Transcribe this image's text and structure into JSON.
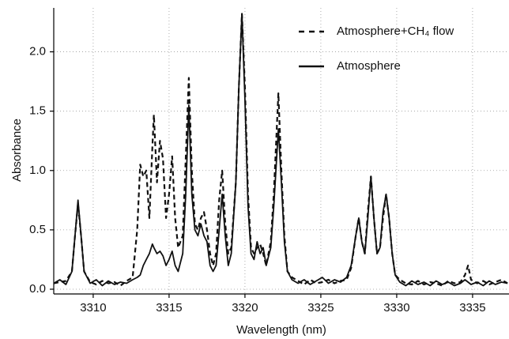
{
  "chart_data": {
    "type": "line",
    "x_label": "Wavelength (nm)",
    "y_label": "Absorbance",
    "x": [
      3307.4,
      3307.8,
      3308.2,
      3308.6,
      3308.8,
      3309.0,
      3309.2,
      3309.4,
      3309.8,
      3310.2,
      3310.6,
      3311.0,
      3311.4,
      3311.8,
      3312.2,
      3312.6,
      3312.9,
      3313.1,
      3313.3,
      3313.5,
      3313.7,
      3313.9,
      3314.0,
      3314.2,
      3314.4,
      3314.6,
      3314.8,
      3315.0,
      3315.2,
      3315.4,
      3315.6,
      3315.9,
      3316.1,
      3316.3,
      3316.5,
      3316.7,
      3316.9,
      3317.1,
      3317.3,
      3317.5,
      3317.7,
      3317.9,
      3318.1,
      3318.3,
      3318.5,
      3318.7,
      3318.9,
      3319.1,
      3319.4,
      3319.6,
      3319.8,
      3320.0,
      3320.2,
      3320.4,
      3320.6,
      3320.8,
      3321.0,
      3321.2,
      3321.4,
      3321.7,
      3321.9,
      3322.2,
      3322.4,
      3322.6,
      3322.8,
      3323.1,
      3323.5,
      3323.9,
      3324.3,
      3324.7,
      3325.1,
      3325.5,
      3325.9,
      3326.3,
      3326.7,
      3327.0,
      3327.3,
      3327.5,
      3327.7,
      3327.9,
      3328.1,
      3328.3,
      3328.5,
      3328.7,
      3328.9,
      3329.1,
      3329.3,
      3329.5,
      3329.7,
      3329.9,
      3330.2,
      3330.6,
      3331.0,
      3331.4,
      3331.8,
      3332.2,
      3332.6,
      3333.0,
      3333.4,
      3333.8,
      3334.2,
      3334.5,
      3334.7,
      3334.9,
      3335.3,
      3335.7,
      3336.1,
      3336.5,
      3336.9,
      3337.3
    ],
    "series": [
      {
        "name": "Atmosphere+CH₄ flow",
        "color": "#111111",
        "dash": true,
        "values": [
          0.05,
          0.06,
          0.07,
          0.15,
          0.45,
          0.72,
          0.45,
          0.15,
          0.06,
          0.04,
          0.07,
          0.05,
          0.06,
          0.03,
          0.07,
          0.1,
          0.5,
          1.05,
          0.95,
          1.0,
          0.6,
          1.2,
          1.47,
          0.9,
          1.25,
          1.1,
          0.6,
          0.8,
          1.12,
          0.6,
          0.35,
          0.45,
          1.1,
          1.78,
          1.0,
          0.55,
          0.5,
          0.6,
          0.65,
          0.5,
          0.3,
          0.2,
          0.3,
          0.75,
          1.0,
          0.55,
          0.3,
          0.35,
          0.9,
          1.7,
          2.32,
          1.7,
          0.8,
          0.35,
          0.3,
          0.35,
          0.38,
          0.3,
          0.2,
          0.4,
          0.8,
          1.65,
          1.0,
          0.45,
          0.15,
          0.1,
          0.07,
          0.04,
          0.08,
          0.05,
          0.06,
          0.08,
          0.05,
          0.07,
          0.08,
          0.18,
          0.45,
          0.6,
          0.4,
          0.3,
          0.65,
          0.95,
          0.6,
          0.3,
          0.35,
          0.6,
          0.8,
          0.6,
          0.3,
          0.12,
          0.08,
          0.05,
          0.04,
          0.07,
          0.04,
          0.06,
          0.05,
          0.03,
          0.07,
          0.05,
          0.06,
          0.12,
          0.2,
          0.08,
          0.05,
          0.07,
          0.04,
          0.06,
          0.08,
          0.05
        ]
      },
      {
        "name": "Atmosphere",
        "color": "#111111",
        "dash": false,
        "values": [
          0.05,
          0.08,
          0.04,
          0.15,
          0.45,
          0.75,
          0.45,
          0.15,
          0.05,
          0.08,
          0.03,
          0.07,
          0.04,
          0.06,
          0.05,
          0.08,
          0.1,
          0.12,
          0.2,
          0.25,
          0.3,
          0.38,
          0.35,
          0.3,
          0.32,
          0.28,
          0.2,
          0.25,
          0.32,
          0.2,
          0.15,
          0.3,
          0.8,
          1.55,
          0.8,
          0.5,
          0.45,
          0.55,
          0.45,
          0.4,
          0.2,
          0.15,
          0.2,
          0.5,
          0.8,
          0.45,
          0.2,
          0.3,
          0.9,
          1.7,
          2.32,
          1.6,
          0.7,
          0.3,
          0.25,
          0.4,
          0.3,
          0.35,
          0.2,
          0.35,
          0.7,
          1.35,
          0.9,
          0.4,
          0.15,
          0.08,
          0.05,
          0.08,
          0.04,
          0.07,
          0.1,
          0.05,
          0.08,
          0.06,
          0.1,
          0.2,
          0.45,
          0.6,
          0.4,
          0.3,
          0.6,
          0.95,
          0.6,
          0.3,
          0.35,
          0.65,
          0.8,
          0.6,
          0.3,
          0.12,
          0.06,
          0.03,
          0.07,
          0.04,
          0.06,
          0.03,
          0.07,
          0.04,
          0.06,
          0.03,
          0.05,
          0.08,
          0.06,
          0.04,
          0.06,
          0.03,
          0.07,
          0.04,
          0.06,
          0.05
        ]
      }
    ],
    "xlim": [
      3307.4,
      3337.4
    ],
    "xticks": [
      3310,
      3315,
      3320,
      3325,
      3330,
      3335
    ],
    "ylim": [
      -0.04,
      2.37
    ],
    "yticks": [
      {
        "value": 0,
        "label": "0.0"
      },
      {
        "value": 0.5,
        "label": "0.5"
      },
      {
        "value": 1,
        "label": "1.0"
      },
      {
        "value": 1.5,
        "label": "1.5"
      },
      {
        "value": 2,
        "label": "2.0"
      }
    ],
    "grid": true,
    "legend": "upper right"
  }
}
